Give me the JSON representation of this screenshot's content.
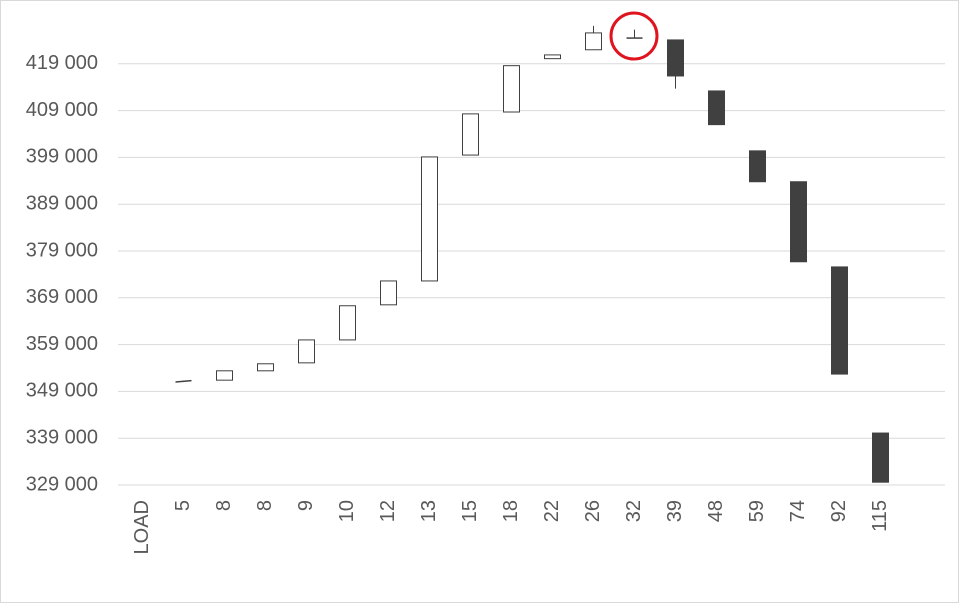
{
  "chart_data": {
    "type": "candlestick",
    "categories": [
      "LOAD",
      "5",
      "8",
      "8",
      "9",
      "10",
      "12",
      "13",
      "15",
      "18",
      "22",
      "26",
      "32",
      "39",
      "48",
      "59",
      "74",
      "92",
      "115"
    ],
    "open": [
      null,
      351000,
      351400,
      353400,
      355100,
      360000,
      367500,
      372600,
      399500,
      408700,
      420100,
      422000,
      424500,
      424100,
      413200,
      400400,
      393800,
      375600,
      340100
    ],
    "high": [
      null,
      351300,
      353400,
      354900,
      360000,
      367300,
      372600,
      399100,
      408300,
      418600,
      420900,
      427100,
      426300,
      424100,
      413200,
      400400,
      393800,
      375600,
      340100
    ],
    "low": [
      null,
      351000,
      351400,
      353400,
      355100,
      360000,
      367500,
      372600,
      399500,
      408700,
      420100,
      422000,
      424500,
      413700,
      406000,
      393800,
      376700,
      352700,
      329600
    ],
    "close": [
      null,
      351300,
      353400,
      354900,
      360000,
      367300,
      372600,
      399100,
      408300,
      418600,
      420900,
      425600,
      424500,
      416400,
      406000,
      393800,
      376700,
      352700,
      329600
    ],
    "up_color": "#ffffff",
    "down_color": "#404040",
    "ylim": [
      329000,
      429000
    ],
    "yticks": [
      {
        "value": 329000,
        "label": "329 000"
      },
      {
        "value": 339000,
        "label": "339 000"
      },
      {
        "value": 349000,
        "label": "349 000"
      },
      {
        "value": 359000,
        "label": "359 000"
      },
      {
        "value": 369000,
        "label": "369 000"
      },
      {
        "value": 379000,
        "label": "379 000"
      },
      {
        "value": 389000,
        "label": "389 000"
      },
      {
        "value": 399000,
        "label": "399 000"
      },
      {
        "value": 409000,
        "label": "409 000"
      },
      {
        "value": 419000,
        "label": "419 000"
      }
    ],
    "grid": true
  }
}
